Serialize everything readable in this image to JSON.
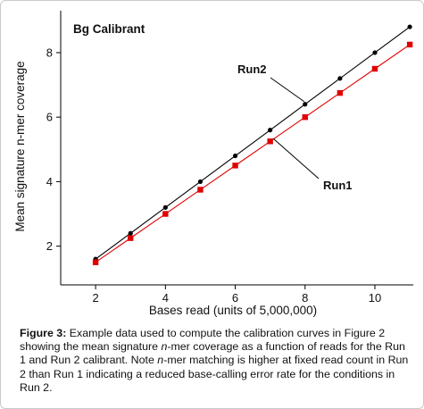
{
  "chart_data": {
    "type": "line",
    "title": "Bg Calibrant",
    "xlabel": "Bases read (units of 5,000,000)",
    "ylabel": "Mean signature n-mer coverage",
    "xlim": [
      1,
      11.1
    ],
    "ylim": [
      0.8,
      9.3
    ],
    "xticks": [
      2,
      4,
      6,
      8,
      10
    ],
    "yticks": [
      2,
      4,
      6,
      8
    ],
    "grid": false,
    "legend": "inline labels",
    "series": [
      {
        "name": "Run2",
        "color": "#000000",
        "marker": "circle",
        "x": [
          2,
          3,
          4,
          5,
          6,
          7,
          8,
          9,
          10,
          11
        ],
        "y": [
          1.6,
          2.4,
          3.2,
          4.0,
          4.8,
          5.6,
          6.4,
          7.2,
          8.0,
          8.8
        ]
      },
      {
        "name": "Run1",
        "color": "#e00000",
        "marker": "square",
        "x": [
          2,
          3,
          4,
          5,
          6,
          7,
          8,
          9,
          10,
          11
        ],
        "y": [
          1.5,
          2.25,
          3.0,
          3.75,
          4.5,
          5.25,
          6.0,
          6.75,
          7.5,
          8.25
        ]
      }
    ]
  },
  "caption": {
    "label": "Figure 3:",
    "text_1": " Example data used to compute the calibration curves in Figure 2 showing the mean signature ",
    "italic_1": "n",
    "text_2": "-mer coverage as a function of reads for the Run 1 and Run 2 calibrant. Note ",
    "italic_2": "n",
    "text_3": "-mer matching is higher at fixed read count in Run 2 than Run 1 indicating a reduced base-calling error rate for the conditions in Run 2."
  }
}
